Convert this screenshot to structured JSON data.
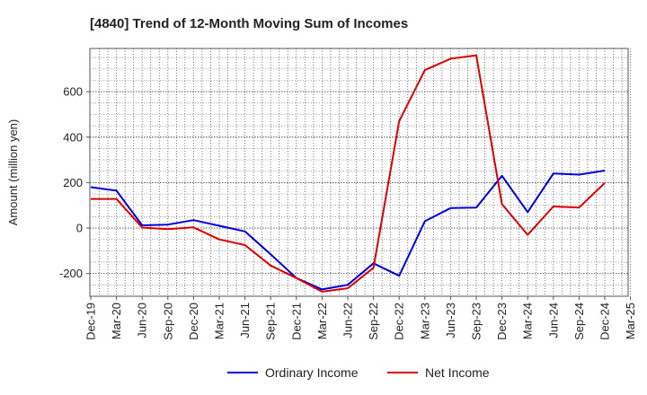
{
  "chart_data": {
    "type": "line",
    "title": "[4840]  Trend of 12-Month Moving Sum of Incomes",
    "xlabel": "",
    "ylabel": "Amount (million yen)",
    "categories": [
      "Dec-19",
      "Mar-20",
      "Jun-20",
      "Sep-20",
      "Dec-20",
      "Mar-21",
      "Jun-21",
      "Sep-21",
      "Dec-21",
      "Mar-22",
      "Jun-22",
      "Sep-22",
      "Dec-22",
      "Mar-23",
      "Jun-23",
      "Sep-23",
      "Dec-23",
      "Mar-24",
      "Jun-24",
      "Sep-24",
      "Dec-24",
      "Mar-25"
    ],
    "ylim": [
      -300,
      790
    ],
    "yticks": [
      -200,
      0,
      200,
      400,
      600
    ],
    "ytick_labels": [
      "-200",
      "0",
      "200",
      "400",
      "600"
    ],
    "grid": true,
    "legend_position": "bottom",
    "series": [
      {
        "name": "Ordinary Income",
        "color": "#0000dd",
        "values": [
          180,
          165,
          12,
          15,
          35,
          10,
          -15,
          -115,
          -220,
          -270,
          -250,
          -155,
          -210,
          30,
          88,
          90,
          230,
          70,
          240,
          235,
          253,
          null
        ]
      },
      {
        "name": "Net Income",
        "color": "#dd0000",
        "values": [
          128,
          128,
          2,
          -5,
          3,
          -50,
          -75,
          -165,
          -220,
          -280,
          -265,
          -175,
          470,
          695,
          745,
          760,
          105,
          -30,
          95,
          90,
          198,
          null
        ]
      }
    ]
  }
}
